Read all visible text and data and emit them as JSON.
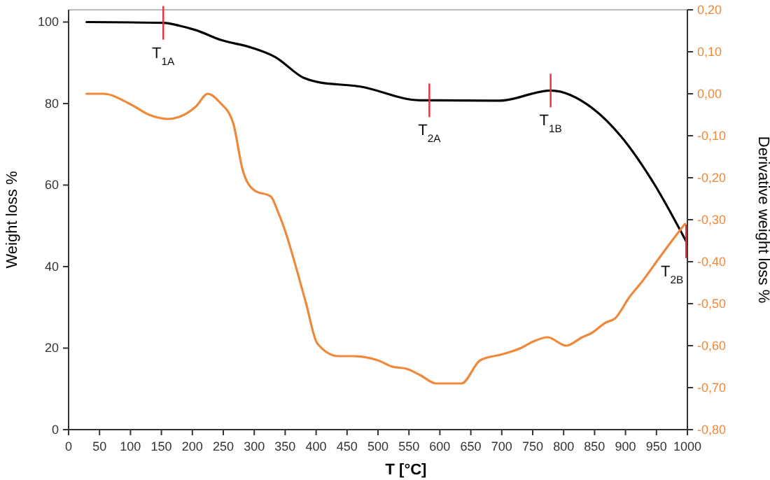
{
  "chart_data": {
    "type": "line",
    "xlabel": "T [°C]",
    "ylabel": "Weight loss  %",
    "y2label": "Derivative weight loss %",
    "xlim": [
      0,
      1000
    ],
    "xticks": [
      0,
      50,
      100,
      150,
      200,
      250,
      300,
      350,
      400,
      450,
      500,
      550,
      600,
      650,
      700,
      750,
      800,
      850,
      900,
      950,
      1000
    ],
    "ylim": [
      0,
      103
    ],
    "yticks": [
      0,
      20,
      40,
      60,
      80,
      100
    ],
    "y2lim": [
      -0.8,
      0.2
    ],
    "y2ticks": [
      {
        "value": -0.8,
        "label": "-0,80"
      },
      {
        "value": -0.7,
        "label": "-0,70"
      },
      {
        "value": -0.6,
        "label": "-0,60"
      },
      {
        "value": -0.5,
        "label": "-0,50"
      },
      {
        "value": -0.4,
        "label": "-0,40"
      },
      {
        "value": -0.3,
        "label": "-0,30"
      },
      {
        "value": -0.2,
        "label": "-0,20"
      },
      {
        "value": -0.1,
        "label": "-0,10"
      },
      {
        "value": 0,
        "label": "0,00"
      },
      {
        "value": 0.1,
        "label": "0,10"
      },
      {
        "value": 0.2,
        "label": "0,20"
      }
    ],
    "grid": false,
    "series": [
      {
        "color": "#000000",
        "x": [
          29,
          153,
          179,
          206,
          244,
          296,
          334,
          380,
          402,
          470,
          568,
          583,
          696,
          779,
          847,
          893,
          945,
          998
        ],
        "values": [
          100,
          99.8,
          99.1,
          98,
          95.7,
          93.7,
          91.4,
          86.3,
          85.3,
          84.2,
          80.8,
          80.8,
          80.7,
          83.2,
          78.8,
          71.9,
          60.6,
          46.2
        ]
      },
      {
        "color": "#f0883a",
        "axis": "y2",
        "x": [
          29,
          56,
          100,
          130,
          161,
          179,
          206,
          225,
          244,
          266,
          281,
          300,
          327,
          338,
          346,
          383,
          402,
          436,
          459,
          500,
          523,
          546,
          568,
          594,
          635,
          665,
          702,
          732,
          751,
          774,
          804,
          830,
          845,
          868,
          883,
          906,
          928,
          955,
          970,
          996
        ],
        "values": [
          0,
          0,
          -0.025,
          -0.05,
          -0.06,
          -0.055,
          -0.03,
          0,
          -0.02,
          -0.07,
          -0.18,
          -0.23,
          -0.245,
          -0.28,
          -0.31,
          -0.495,
          -0.595,
          -0.625,
          -0.625,
          -0.635,
          -0.65,
          -0.655,
          -0.67,
          -0.69,
          -0.69,
          -0.635,
          -0.62,
          -0.605,
          -0.59,
          -0.58,
          -0.6,
          -0.58,
          -0.57,
          -0.545,
          -0.535,
          -0.485,
          -0.445,
          -0.39,
          -0.36,
          -0.31
        ]
      }
    ],
    "annotations": [
      {
        "text": "T$_{1A}$",
        "x": 153,
        "y": 99.8
      },
      {
        "text": "T$_{2A}$",
        "x": 583,
        "y": 80.8
      },
      {
        "text": "T$_{1B}$",
        "x": 779,
        "y": 83.2
      },
      {
        "text": "T$_{2B}$",
        "x": 998,
        "y": 46.2
      }
    ]
  }
}
